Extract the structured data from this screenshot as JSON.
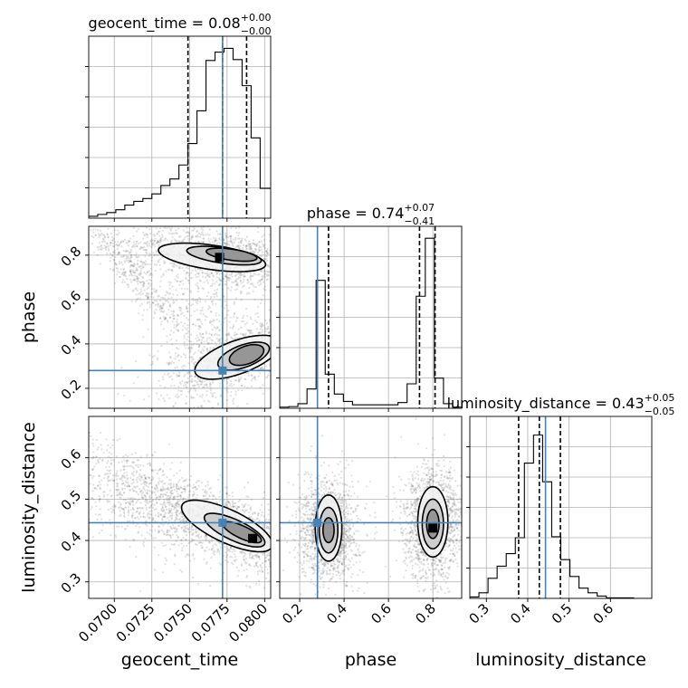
{
  "chart_data": {
    "type": "corner",
    "parameters": [
      "geocent_time",
      "phase",
      "luminosity_distance"
    ],
    "axis_ranges": {
      "geocent_time": [
        0.0683,
        0.0804
      ],
      "phase": [
        0.11,
        0.93
      ],
      "luminosity_distance": [
        0.26,
        0.7
      ]
    },
    "ticks": {
      "geocent_time": {
        "values": [
          0.07,
          0.0725,
          0.075,
          0.0775,
          0.08
        ],
        "labels": [
          "0.0700",
          "0.0725",
          "0.0750",
          "0.0775",
          "0.0800"
        ]
      },
      "phase": {
        "values": [
          0.2,
          0.4,
          0.6,
          0.8
        ],
        "labels": [
          "0.2",
          "0.4",
          "0.6",
          "0.8"
        ]
      },
      "luminosity_distance": {
        "values": [
          0.3,
          0.4,
          0.5,
          0.6
        ],
        "labels": [
          "0.3",
          "0.4",
          "0.5",
          "0.6"
        ]
      }
    },
    "truths": {
      "geocent_time": 0.0772,
      "phase": 0.28,
      "luminosity_distance": 0.443
    },
    "truth_color": "#4682b4",
    "grid": true,
    "titles": [
      {
        "param": "geocent_time",
        "main": "geocent_time = 0.08",
        "sup": "+0.00",
        "sub": "−0.00"
      },
      {
        "param": "phase",
        "main": "phase = 0.74",
        "sup": "+0.07",
        "sub": "−0.41"
      },
      {
        "param": "luminosity_distance",
        "main": "luminosity_distance = 0.43",
        "sup": "+0.05",
        "sub": "−0.05"
      }
    ],
    "histograms": {
      "geocent_time": {
        "bin_edges": [
          0.0683,
          0.0689,
          0.0695,
          0.0701,
          0.0707,
          0.0713,
          0.0719,
          0.0725,
          0.0731,
          0.0737,
          0.0743,
          0.0749,
          0.0755,
          0.0761,
          0.0767,
          0.0773,
          0.0779,
          0.0785,
          0.0791,
          0.0797,
          0.0804
        ],
        "counts": [
          2,
          4,
          6,
          9,
          14,
          18,
          21,
          26,
          35,
          42,
          57,
          80,
          115,
          169,
          178,
          182,
          170,
          142,
          86,
          32
        ],
        "quantiles": [
          0.0749,
          0.0772,
          0.0788
        ],
        "ymax": 195
      },
      "phase": {
        "bin_edges": [
          0.11,
          0.151,
          0.192,
          0.233,
          0.274,
          0.315,
          0.356,
          0.397,
          0.438,
          0.479,
          0.52,
          0.561,
          0.602,
          0.643,
          0.684,
          0.725,
          0.766,
          0.807,
          0.848,
          0.889,
          0.93
        ],
        "counts": [
          2,
          3,
          8,
          34,
          225,
          60,
          25,
          12,
          6,
          6,
          6,
          6,
          6,
          10,
          43,
          197,
          299,
          53,
          8,
          2
        ],
        "quantiles": [
          0.33,
          0.74,
          0.81
        ],
        "ymax": 320
      },
      "luminosity_distance": {
        "bin_edges": [
          0.26,
          0.282,
          0.304,
          0.326,
          0.348,
          0.37,
          0.392,
          0.414,
          0.436,
          0.458,
          0.48,
          0.502,
          0.524,
          0.546,
          0.568,
          0.59,
          0.612,
          0.634,
          0.656,
          0.678,
          0.7
        ],
        "counts": [
          3,
          12,
          43,
          69,
          96,
          130,
          290,
          350,
          250,
          132,
          83,
          47,
          22,
          12,
          5,
          1,
          1,
          1,
          0,
          0
        ],
        "quantiles": [
          0.378,
          0.428,
          0.479
        ],
        "ymax": 390
      }
    },
    "joint_2d": [
      {
        "x": "geocent_time",
        "y": "phase",
        "modes": [
          {
            "cx": 0.0772,
            "cy": 0.79,
            "rx": 0.003,
            "ry": 0.055,
            "angle": -10,
            "weight": 1.0,
            "n": 1500
          },
          {
            "cx": 0.0787,
            "cy": 0.35,
            "rx": 0.0025,
            "ry": 0.06,
            "angle": 20,
            "weight": 0.85,
            "n": 1200
          },
          {
            "cx": 0.0715,
            "cy": 0.7,
            "rx": 0.0025,
            "ry": 0.03,
            "angle": -50,
            "weight": 0.2,
            "n": 400
          },
          {
            "cx": 0.076,
            "cy": 0.5,
            "rx": 0.0015,
            "ry": 0.2,
            "angle": 0,
            "weight": 0.05,
            "n": 500
          }
        ],
        "contours": [
          {
            "cx": 0.0778,
            "cy": 0.802,
            "rx": 0.0017,
            "ry": 0.025,
            "angle": -8
          },
          {
            "cx": 0.0773,
            "cy": 0.798,
            "rx": 0.0025,
            "ry": 0.035,
            "angle": -8
          },
          {
            "cx": 0.0765,
            "cy": 0.79,
            "rx": 0.0036,
            "ry": 0.055,
            "angle": -8
          },
          {
            "cx": 0.0788,
            "cy": 0.35,
            "rx": 0.0012,
            "ry": 0.04,
            "angle": 20
          },
          {
            "cx": 0.0786,
            "cy": 0.345,
            "rx": 0.0018,
            "ry": 0.05,
            "angle": 20
          },
          {
            "cx": 0.0782,
            "cy": 0.34,
            "rx": 0.003,
            "ry": 0.075,
            "angle": 20
          }
        ],
        "peak_cells": [
          {
            "x": 0.077,
            "y": 0.79
          }
        ]
      },
      {
        "x": "geocent_time",
        "y": "luminosity_distance",
        "modes": [
          {
            "cx": 0.078,
            "cy": 0.425,
            "rx": 0.0035,
            "ry": 0.035,
            "angle": -25,
            "weight": 1.0,
            "n": 1800
          },
          {
            "cx": 0.0715,
            "cy": 0.5,
            "rx": 0.003,
            "ry": 0.05,
            "angle": -30,
            "weight": 0.2,
            "n": 700
          }
        ],
        "contours": [
          {
            "cx": 0.0785,
            "cy": 0.42,
            "rx": 0.0014,
            "ry": 0.015,
            "angle": -25
          },
          {
            "cx": 0.078,
            "cy": 0.425,
            "rx": 0.0022,
            "ry": 0.025,
            "angle": -25
          },
          {
            "cx": 0.0775,
            "cy": 0.435,
            "rx": 0.0033,
            "ry": 0.04,
            "angle": -25
          }
        ],
        "peak_cells": [
          {
            "x": 0.0792,
            "y": 0.405
          }
        ]
      },
      {
        "x": "phase",
        "y": "luminosity_distance",
        "modes": [
          {
            "cx": 0.33,
            "cy": 0.425,
            "rx": 0.06,
            "ry": 0.055,
            "angle": 0,
            "weight": 1.0,
            "n": 1500
          },
          {
            "cx": 0.8,
            "cy": 0.44,
            "rx": 0.06,
            "ry": 0.06,
            "angle": 0,
            "weight": 1.0,
            "n": 1600
          }
        ],
        "contours": [
          {
            "cx": 0.33,
            "cy": 0.425,
            "rx": 0.025,
            "ry": 0.03,
            "angle": 0
          },
          {
            "cx": 0.33,
            "cy": 0.425,
            "rx": 0.042,
            "ry": 0.055,
            "angle": 0
          },
          {
            "cx": 0.33,
            "cy": 0.43,
            "rx": 0.06,
            "ry": 0.08,
            "angle": 0
          },
          {
            "cx": 0.8,
            "cy": 0.44,
            "rx": 0.028,
            "ry": 0.035,
            "angle": 0
          },
          {
            "cx": 0.8,
            "cy": 0.44,
            "rx": 0.048,
            "ry": 0.06,
            "angle": 0
          },
          {
            "cx": 0.8,
            "cy": 0.445,
            "rx": 0.068,
            "ry": 0.085,
            "angle": 0
          }
        ],
        "peak_cells": [
          {
            "x": 0.8,
            "y": 0.43
          }
        ]
      }
    ]
  }
}
